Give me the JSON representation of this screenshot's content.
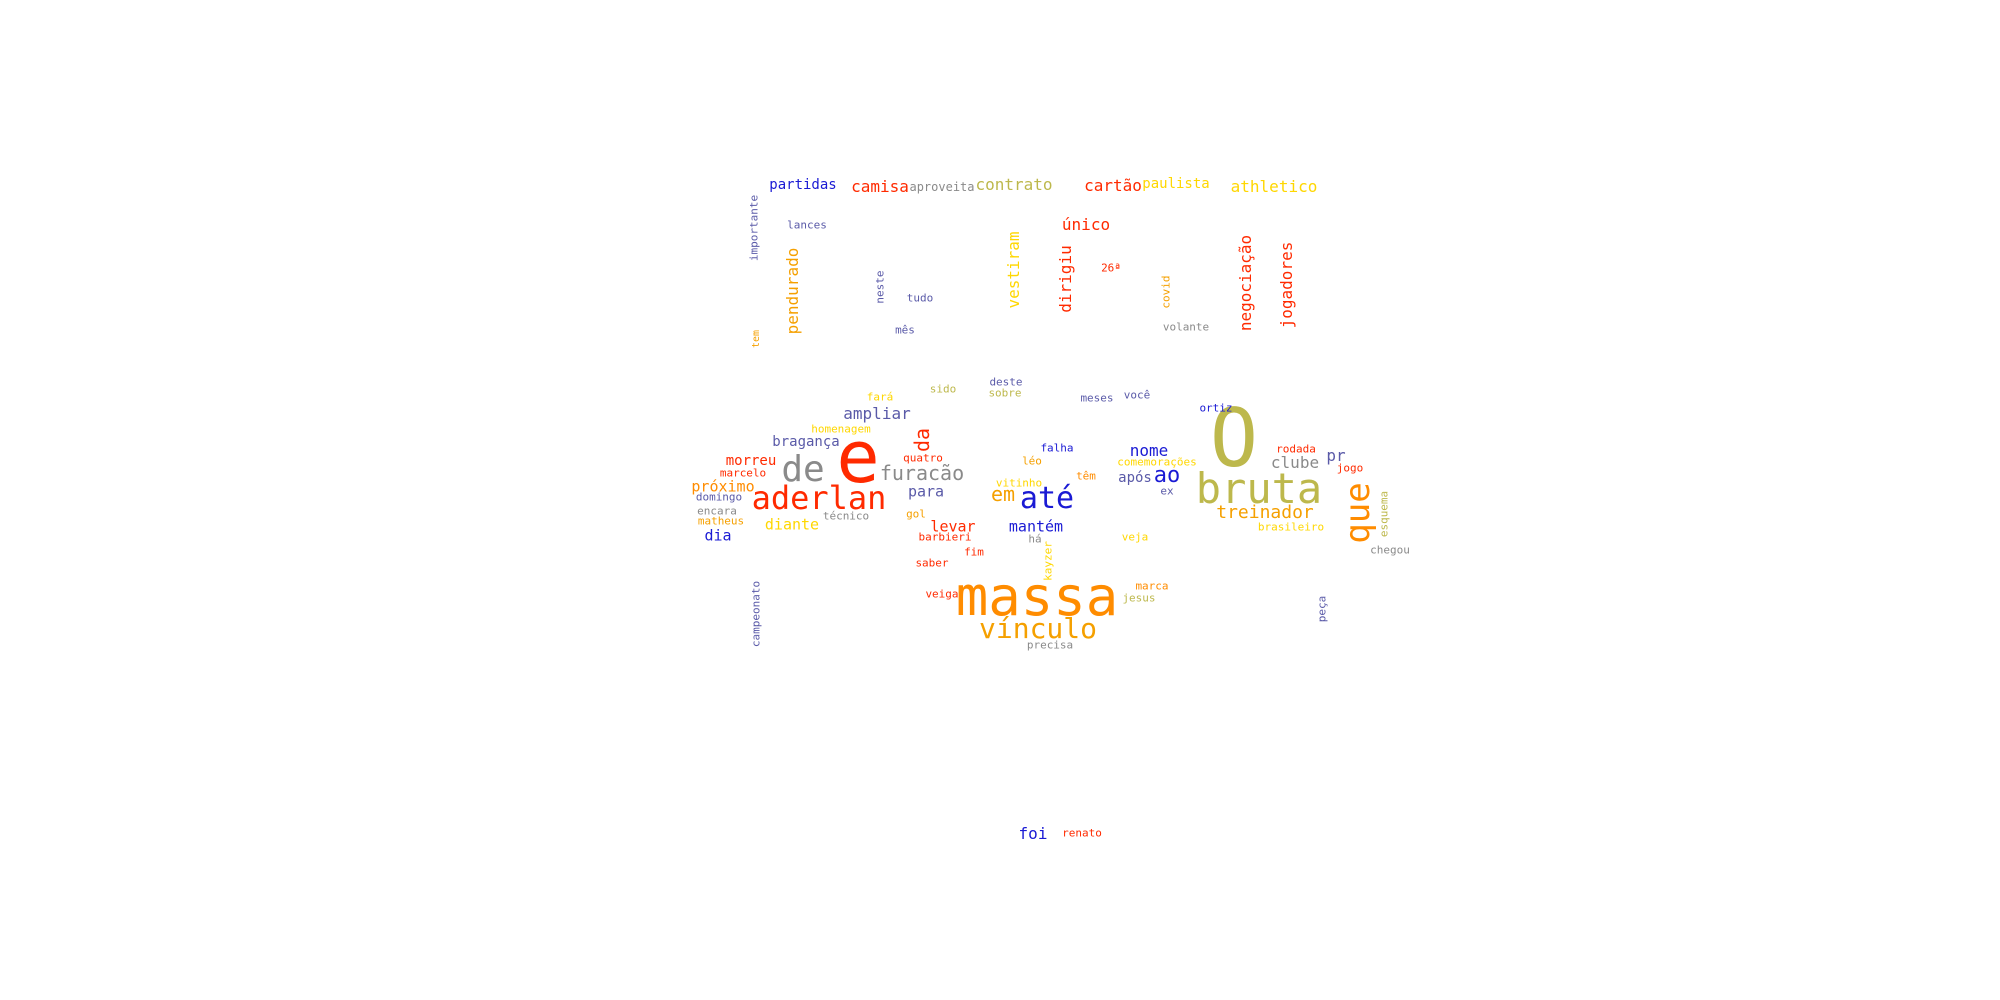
{
  "colors": {
    "red": "#ff2a00",
    "orange": "#ff8c00",
    "amber": "#f5a000",
    "yellow": "#ffd700",
    "olive": "#bdb84c",
    "gray": "#8a8a8a",
    "blue": "#1a1ad4",
    "slate": "#5a5aa8"
  },
  "words": [
    {
      "text": "e",
      "color": "red"
    },
    {
      "text": "O",
      "color": "olive"
    },
    {
      "text": "massa",
      "color": "orange"
    },
    {
      "text": "bruta",
      "color": "olive"
    },
    {
      "text": "aderlan",
      "color": "red"
    },
    {
      "text": "de",
      "color": "gray"
    },
    {
      "text": "que",
      "color": "orange"
    },
    {
      "text": "vínculo",
      "color": "amber"
    },
    {
      "text": "até",
      "color": "blue"
    },
    {
      "text": "furacão",
      "color": "gray"
    },
    {
      "text": "treinador",
      "color": "amber"
    },
    {
      "text": "ao",
      "color": "blue"
    },
    {
      "text": "em",
      "color": "amber"
    },
    {
      "text": "da",
      "color": "red"
    },
    {
      "text": "foi",
      "color": "blue"
    },
    {
      "text": "athletico",
      "color": "yellow"
    },
    {
      "text": "contrato",
      "color": "olive"
    },
    {
      "text": "camisa",
      "color": "red"
    },
    {
      "text": "cartão",
      "color": "red"
    },
    {
      "text": "partidas",
      "color": "blue"
    },
    {
      "text": "paulista",
      "color": "yellow"
    },
    {
      "text": "aproveita",
      "color": "gray"
    },
    {
      "text": "único",
      "color": "red"
    },
    {
      "text": "lances",
      "color": "slate"
    },
    {
      "text": "importante",
      "color": "slate"
    },
    {
      "text": "pendurado",
      "color": "amber"
    },
    {
      "text": "vestiram",
      "color": "yellow"
    },
    {
      "text": "dirigiu",
      "color": "red"
    },
    {
      "text": "negociação",
      "color": "red"
    },
    {
      "text": "jogadores",
      "color": "red"
    },
    {
      "text": "neste",
      "color": "slate"
    },
    {
      "text": "tudo",
      "color": "slate"
    },
    {
      "text": "26ª",
      "color": "red"
    },
    {
      "text": "covid",
      "color": "amber"
    },
    {
      "text": "volante",
      "color": "gray"
    },
    {
      "text": "mês",
      "color": "slate"
    },
    {
      "text": "tem",
      "color": "amber"
    },
    {
      "text": "ampliar",
      "color": "slate"
    },
    {
      "text": "bragança",
      "color": "slate"
    },
    {
      "text": "morreu",
      "color": "red"
    },
    {
      "text": "próximo",
      "color": "orange"
    },
    {
      "text": "marcelo",
      "color": "red"
    },
    {
      "text": "domingo",
      "color": "slate"
    },
    {
      "text": "encara",
      "color": "gray"
    },
    {
      "text": "matheus",
      "color": "amber"
    },
    {
      "text": "dia",
      "color": "blue"
    },
    {
      "text": "diante",
      "color": "yellow"
    },
    {
      "text": "técnico",
      "color": "gray"
    },
    {
      "text": "para",
      "color": "slate"
    },
    {
      "text": "quatro",
      "color": "red"
    },
    {
      "text": "gol",
      "color": "amber"
    },
    {
      "text": "levar",
      "color": "red"
    },
    {
      "text": "barbieri",
      "color": "red"
    },
    {
      "text": "fim",
      "color": "red"
    },
    {
      "text": "saber",
      "color": "red"
    },
    {
      "text": "veiga",
      "color": "red"
    },
    {
      "text": "homenagem",
      "color": "yellow"
    },
    {
      "text": "fará",
      "color": "yellow"
    },
    {
      "text": "sido",
      "color": "olive"
    },
    {
      "text": "deste",
      "color": "slate"
    },
    {
      "text": "sobre",
      "color": "olive"
    },
    {
      "text": "meses",
      "color": "slate"
    },
    {
      "text": "você",
      "color": "slate"
    },
    {
      "text": "ortiz",
      "color": "blue"
    },
    {
      "text": "falha",
      "color": "blue"
    },
    {
      "text": "léo",
      "color": "amber"
    },
    {
      "text": "vitinho",
      "color": "yellow"
    },
    {
      "text": "mantém",
      "color": "blue"
    },
    {
      "text": "há",
      "color": "gray"
    },
    {
      "text": "kayzer",
      "color": "yellow"
    },
    {
      "text": "nome",
      "color": "blue"
    },
    {
      "text": "comemorações",
      "color": "yellow"
    },
    {
      "text": "têm",
      "color": "orange"
    },
    {
      "text": "após",
      "color": "slate"
    },
    {
      "text": "ex",
      "color": "slate"
    },
    {
      "text": "veja",
      "color": "yellow"
    },
    {
      "text": "marca",
      "color": "orange"
    },
    {
      "text": "jesus",
      "color": "olive"
    },
    {
      "text": "precisa",
      "color": "gray"
    },
    {
      "text": "clube",
      "color": "gray"
    },
    {
      "text": "pr",
      "color": "slate"
    },
    {
      "text": "rodada",
      "color": "red"
    },
    {
      "text": "jogo",
      "color": "red"
    },
    {
      "text": "brasileiro",
      "color": "yellow"
    },
    {
      "text": "esquema",
      "color": "olive"
    },
    {
      "text": "chegou",
      "color": "gray"
    },
    {
      "text": "peça",
      "color": "slate"
    },
    {
      "text": "campeonato",
      "color": "slate"
    },
    {
      "text": "renato",
      "color": "red"
    }
  ]
}
